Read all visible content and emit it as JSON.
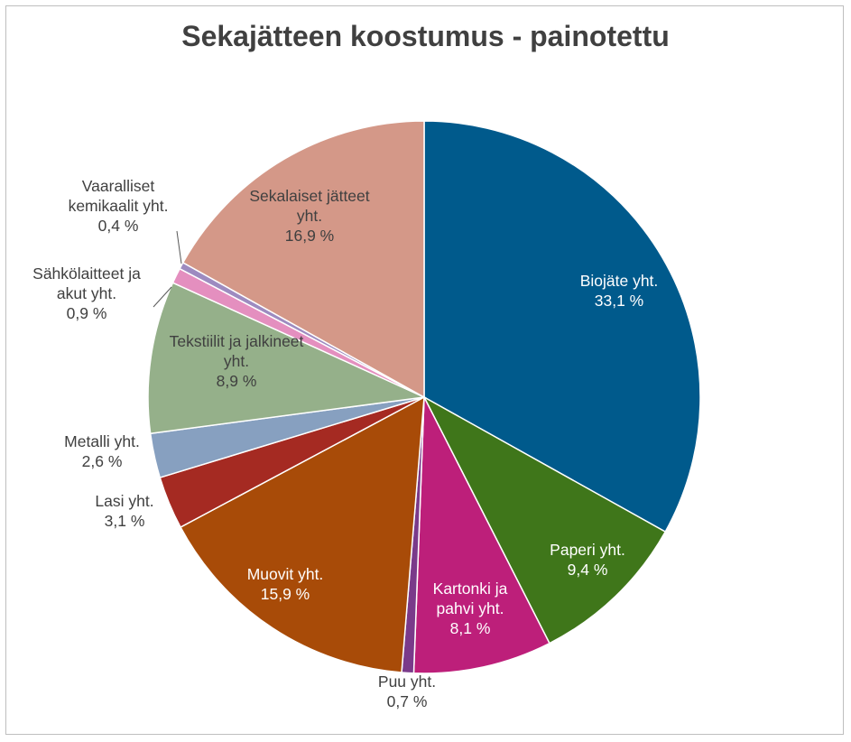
{
  "chart_data": {
    "type": "pie",
    "title": "Sekajätteen koostumus - painotettu",
    "slices": [
      {
        "lines": [
          "Biojäte yht.",
          "33,1 %"
        ],
        "value": 33.1,
        "color": "#005a8c",
        "label_color": "#ffffff"
      },
      {
        "lines": [
          "Paperi yht.",
          "9,4 %"
        ],
        "value": 9.4,
        "color": "#3f761a",
        "label_color": "#ffffff"
      },
      {
        "lines": [
          "Kartonki ja",
          "pahvi yht.",
          "8,1 %"
        ],
        "value": 8.1,
        "color": "#bd1f7a",
        "label_color": "#ffffff"
      },
      {
        "lines": [
          "Puu yht.",
          "0,7 %"
        ],
        "value": 0.7,
        "color": "#7a3a8a",
        "label_color": "#404040"
      },
      {
        "lines": [
          "Muovit yht.",
          "15,9 %"
        ],
        "value": 15.9,
        "color": "#a84b08",
        "label_color": "#ffffff"
      },
      {
        "lines": [
          "Lasi yht.",
          "3,1 %"
        ],
        "value": 3.1,
        "color": "#a52a22",
        "label_color": "#404040"
      },
      {
        "lines": [
          "Metalli yht.",
          "2,6 %"
        ],
        "value": 2.6,
        "color": "#87a0c0",
        "label_color": "#404040"
      },
      {
        "lines": [
          "Tekstiilit ja jalkineet",
          "yht.",
          "8,9 %"
        ],
        "value": 8.9,
        "color": "#95b08a",
        "label_color": "#404040"
      },
      {
        "lines": [
          "Sähkölaitteet ja",
          "akut yht.",
          "0,9 %"
        ],
        "value": 0.9,
        "color": "#e48fbf",
        "label_color": "#404040"
      },
      {
        "lines": [
          "Vaaralliset",
          "kemikaalit yht.",
          "0,4 %"
        ],
        "value": 0.4,
        "color": "#9d8bc0",
        "label_color": "#404040"
      },
      {
        "lines": [
          "Sekalaiset jätteet",
          "yht.",
          "16,9 %"
        ],
        "value": 16.9,
        "color": "#d49888",
        "label_color": "#404040"
      }
    ]
  }
}
